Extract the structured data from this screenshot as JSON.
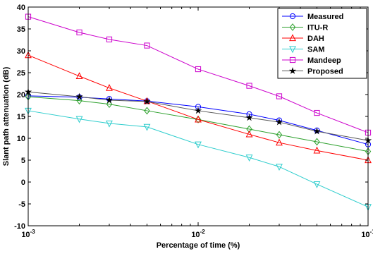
{
  "chart_data": {
    "type": "line",
    "title": "",
    "xlabel": "Percentage of time (%)",
    "ylabel": "Slant path attenuation (dB)",
    "x_scale": "log",
    "xlim": [
      0.001,
      0.1
    ],
    "ylim": [
      -10,
      40
    ],
    "y_ticks": [
      -10,
      -5,
      0,
      5,
      10,
      15,
      20,
      25,
      30,
      35,
      40
    ],
    "x_ticks": [
      {
        "value": 0.001,
        "base": "10",
        "exp": "-3"
      },
      {
        "value": 0.01,
        "base": "10",
        "exp": "-2"
      },
      {
        "value": 0.1,
        "base": "10",
        "exp": "-1"
      }
    ],
    "grid": false,
    "legend_position": "top-right",
    "x": [
      0.001,
      0.002,
      0.003,
      0.005,
      0.01,
      0.02,
      0.03,
      0.05,
      0.1
    ],
    "series": [
      {
        "name": "Measured",
        "color": "#0000ff",
        "marker": "circle",
        "values": [
          19.7,
          19.4,
          19.0,
          18.5,
          17.2,
          15.5,
          14.1,
          11.8,
          8.6
        ]
      },
      {
        "name": "ITU-R",
        "color": "#2ca02c",
        "marker": "diamond",
        "values": [
          19.5,
          18.6,
          17.8,
          16.3,
          14.3,
          12.1,
          10.8,
          9.2,
          7.0
        ]
      },
      {
        "name": "DAH",
        "color": "#ff0000",
        "marker": "triangle-up",
        "values": [
          29.0,
          24.2,
          21.5,
          18.5,
          14.3,
          10.9,
          9.0,
          7.2,
          5.0
        ]
      },
      {
        "name": "SAM",
        "color": "#2ecdcd",
        "marker": "triangle-down",
        "values": [
          16.3,
          14.4,
          13.4,
          12.6,
          8.6,
          5.6,
          3.5,
          -0.5,
          -5.7
        ]
      },
      {
        "name": "Mandeep",
        "color": "#cc00cc",
        "marker": "square",
        "values": [
          37.8,
          34.2,
          32.6,
          31.2,
          25.8,
          22.0,
          19.6,
          15.8,
          11.3
        ]
      },
      {
        "name": "Proposed",
        "color": "#555555",
        "marker": "star",
        "values": [
          20.6,
          19.5,
          18.7,
          18.4,
          16.3,
          14.7,
          13.7,
          11.6,
          9.5
        ]
      }
    ]
  }
}
